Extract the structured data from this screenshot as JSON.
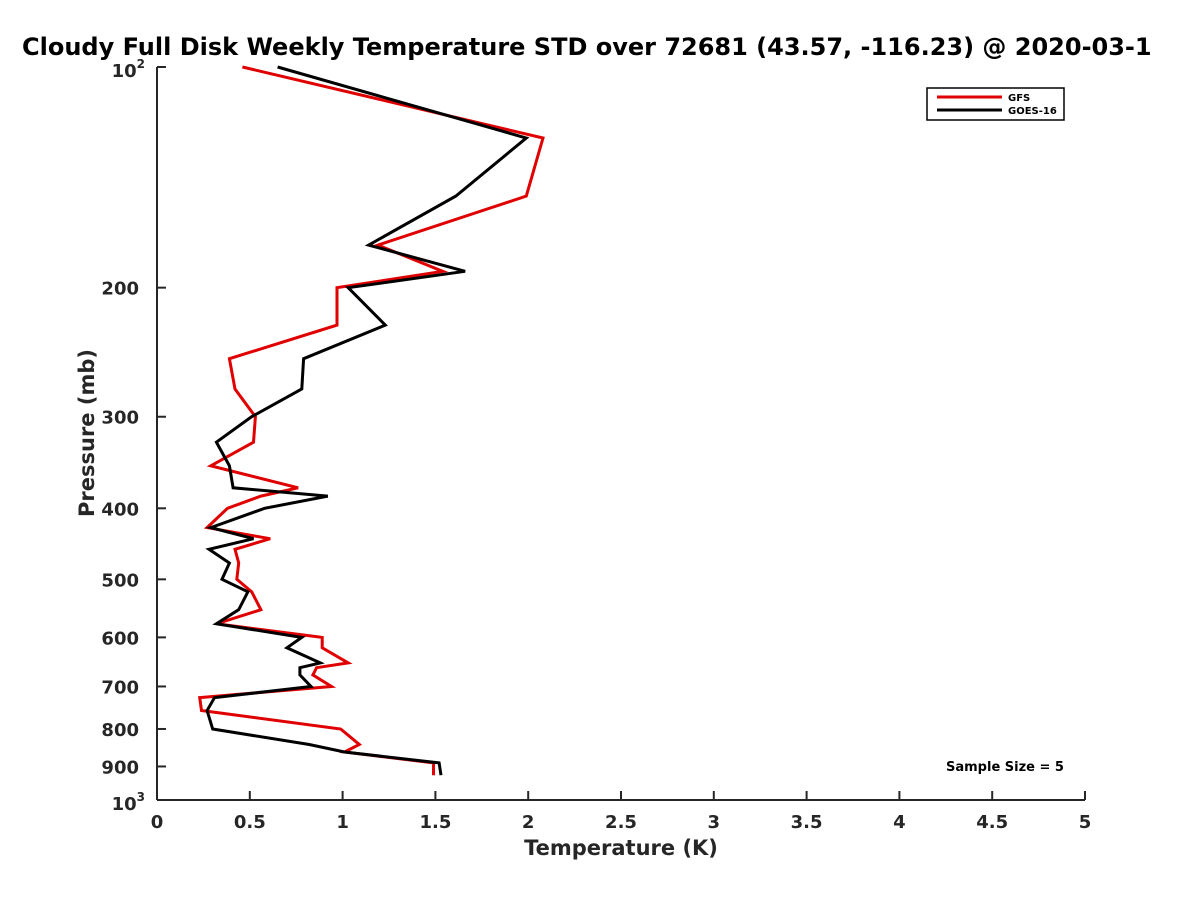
{
  "chart_data": {
    "type": "line",
    "title": "Cloudy Full Disk Weekly Temperature STD over 72681 (43.57, -116.23) @ 2020-03-1",
    "xlabel": "Temperature (K)",
    "ylabel": "Pressure (mb)",
    "xlim": [
      0,
      5
    ],
    "ylim": [
      1000,
      100
    ],
    "yscale": "log",
    "x_ticks": [
      "0",
      "0.5",
      "1",
      "1.5",
      "2",
      "2.5",
      "3",
      "3.5",
      "4",
      "4.5",
      "5"
    ],
    "x_tick_values": [
      0,
      0.5,
      1,
      1.5,
      2,
      2.5,
      3,
      3.5,
      4,
      4.5,
      5
    ],
    "y_ticks": [
      {
        "value": 100,
        "base": "10",
        "exp": "2"
      },
      {
        "value": 200,
        "label": "200"
      },
      {
        "value": 300,
        "label": "300"
      },
      {
        "value": 400,
        "label": "400"
      },
      {
        "value": 500,
        "label": "500"
      },
      {
        "value": 600,
        "label": "600"
      },
      {
        "value": 700,
        "label": "700"
      },
      {
        "value": 800,
        "label": "800"
      },
      {
        "value": 900,
        "label": "900"
      },
      {
        "value": 1000,
        "base": "10",
        "exp": "3"
      }
    ],
    "legend_position": "top-right",
    "annotation": "Sample Size = 5",
    "grid": false,
    "series": [
      {
        "name": "GFS",
        "color": "#e00000",
        "points": [
          [
            0.46,
            100
          ],
          [
            2.08,
            125
          ],
          [
            1.99,
            150
          ],
          [
            1.19,
            175
          ],
          [
            1.54,
            190
          ],
          [
            0.97,
            200
          ],
          [
            0.97,
            225
          ],
          [
            0.39,
            250
          ],
          [
            0.42,
            275
          ],
          [
            0.53,
            300
          ],
          [
            0.52,
            325
          ],
          [
            0.29,
            350
          ],
          [
            0.76,
            375
          ],
          [
            0.56,
            385
          ],
          [
            0.38,
            400
          ],
          [
            0.27,
            425
          ],
          [
            0.61,
            440
          ],
          [
            0.42,
            455
          ],
          [
            0.44,
            475
          ],
          [
            0.43,
            500
          ],
          [
            0.51,
            520
          ],
          [
            0.56,
            550
          ],
          [
            0.32,
            575
          ],
          [
            0.89,
            600
          ],
          [
            0.89,
            620
          ],
          [
            1.03,
            650
          ],
          [
            0.86,
            660
          ],
          [
            0.84,
            675
          ],
          [
            0.94,
            700
          ],
          [
            0.23,
            725
          ],
          [
            0.24,
            755
          ],
          [
            0.99,
            800
          ],
          [
            1.09,
            840
          ],
          [
            1.01,
            860
          ],
          [
            1.49,
            890
          ],
          [
            1.49,
            925
          ]
        ]
      },
      {
        "name": "GOES-16",
        "color": "#000000",
        "points": [
          [
            0.65,
            100
          ],
          [
            1.99,
            125
          ],
          [
            1.61,
            150
          ],
          [
            1.14,
            175
          ],
          [
            1.66,
            190
          ],
          [
            1.03,
            200
          ],
          [
            1.23,
            225
          ],
          [
            0.79,
            250
          ],
          [
            0.78,
            275
          ],
          [
            0.51,
            300
          ],
          [
            0.32,
            325
          ],
          [
            0.39,
            350
          ],
          [
            0.41,
            375
          ],
          [
            0.92,
            385
          ],
          [
            0.58,
            400
          ],
          [
            0.29,
            425
          ],
          [
            0.52,
            440
          ],
          [
            0.28,
            455
          ],
          [
            0.39,
            475
          ],
          [
            0.35,
            500
          ],
          [
            0.49,
            520
          ],
          [
            0.44,
            550
          ],
          [
            0.32,
            575
          ],
          [
            0.78,
            600
          ],
          [
            0.7,
            620
          ],
          [
            0.88,
            650
          ],
          [
            0.77,
            660
          ],
          [
            0.77,
            675
          ],
          [
            0.83,
            700
          ],
          [
            0.31,
            725
          ],
          [
            0.27,
            755
          ],
          [
            0.3,
            800
          ],
          [
            0.82,
            840
          ],
          [
            1.01,
            860
          ],
          [
            1.52,
            890
          ],
          [
            1.53,
            925
          ]
        ]
      }
    ]
  }
}
